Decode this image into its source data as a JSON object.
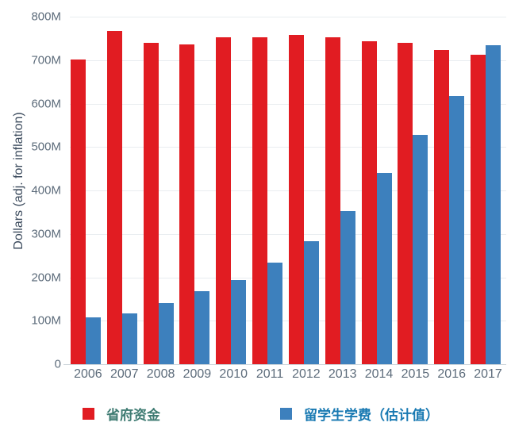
{
  "chart_data": {
    "type": "bar",
    "title": "",
    "xlabel": "",
    "ylabel": "Dollars (adj. for inflation)",
    "unit": "M (millions of dollars)",
    "ylim_millions": [
      0,
      800
    ],
    "grid": "horizontal",
    "legend_position": "bottom",
    "categories": [
      "2006",
      "2007",
      "2008",
      "2009",
      "2010",
      "2011",
      "2012",
      "2013",
      "2014",
      "2015",
      "2016",
      "2017"
    ],
    "yticks": [
      {
        "label": "800M",
        "value": 800
      },
      {
        "label": "700M",
        "value": 700
      },
      {
        "label": "600M",
        "value": 600
      },
      {
        "label": "500M",
        "value": 500
      },
      {
        "label": "400M",
        "value": 400
      },
      {
        "label": "300M",
        "value": 300
      },
      {
        "label": "200M",
        "value": 200
      },
      {
        "label": "100M",
        "value": 100
      },
      {
        "label": "0",
        "value": 0
      }
    ],
    "series": [
      {
        "name": "省府资金",
        "color": "#e11c22",
        "label_color": "#3e7b72",
        "values_millions": [
          702,
          768,
          740,
          737,
          752,
          753,
          758,
          752,
          744,
          740,
          724,
          713
        ]
      },
      {
        "name": "留学生学费（估计值）",
        "color": "#3d80bd",
        "label_color": "#1879b2",
        "values_millions": [
          107,
          117,
          141,
          168,
          194,
          234,
          284,
          352,
          441,
          527,
          618,
          735
        ]
      }
    ]
  },
  "colors": {
    "background": "#ffffff",
    "gridline": "#e9edf0",
    "axis_line": "#cdd5db",
    "tick_text": "#5d6c7b",
    "axis_title_text": "#3c4b5d"
  }
}
